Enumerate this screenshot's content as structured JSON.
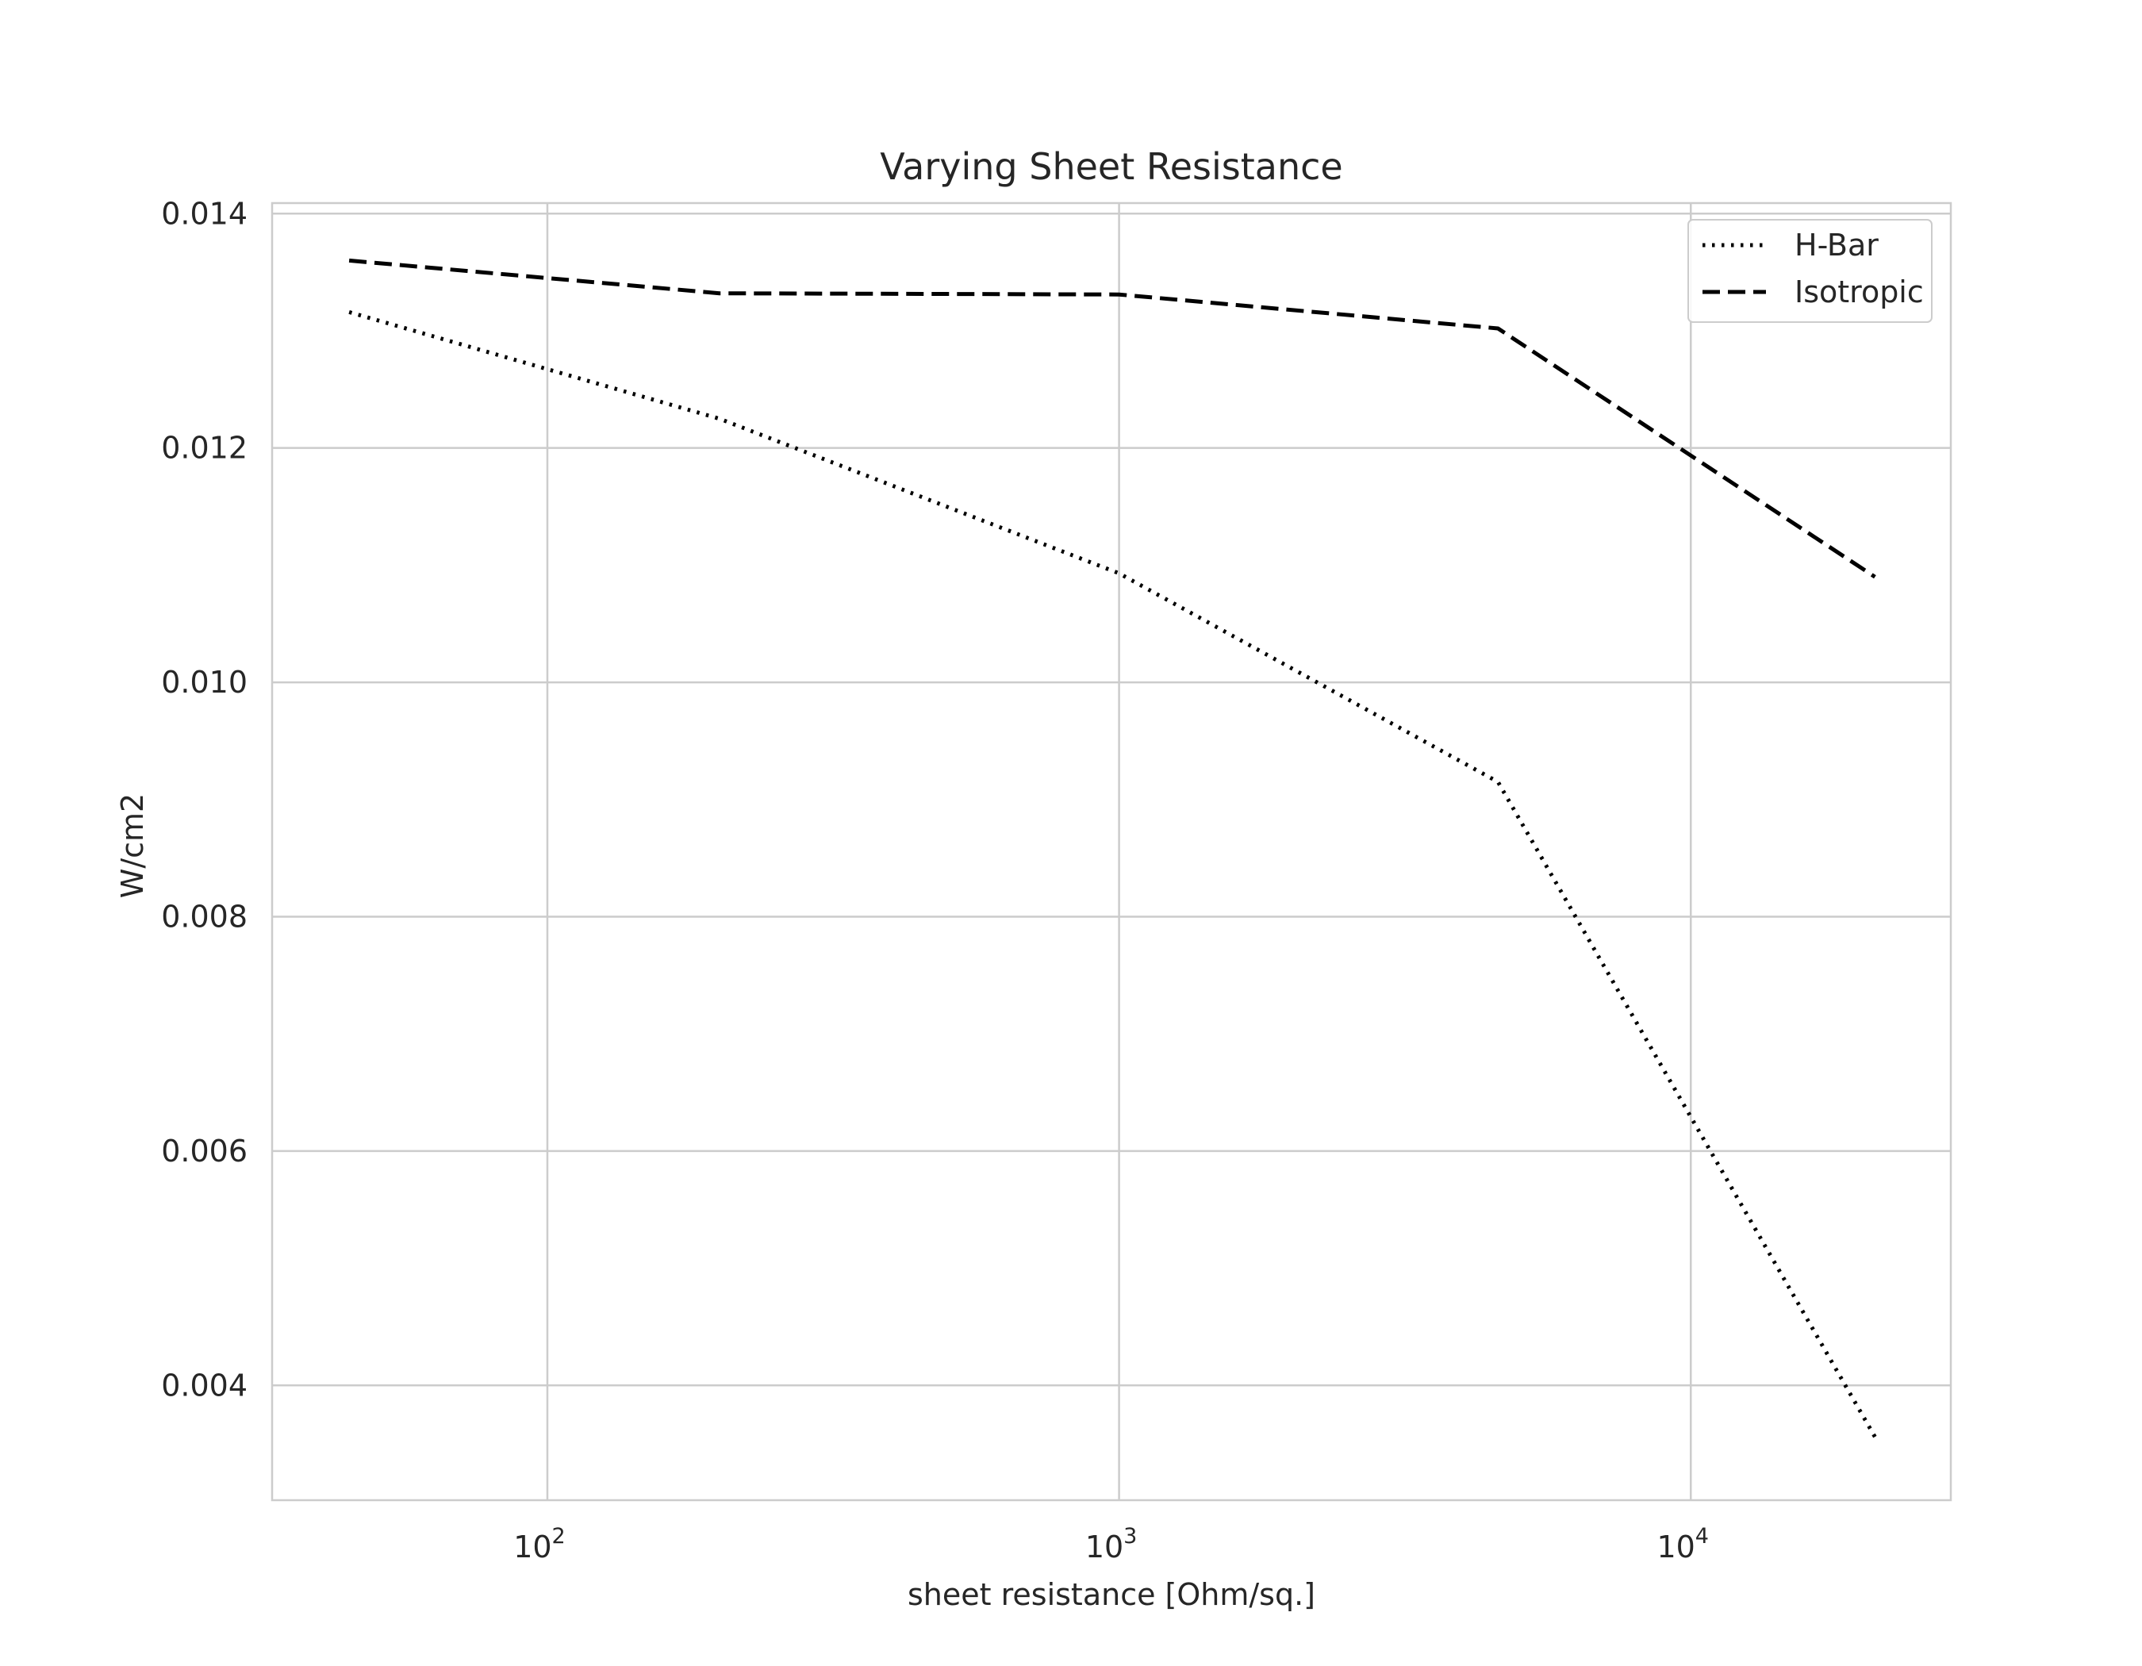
{
  "chart_data": {
    "type": "line",
    "title": "Varying Sheet Resistance",
    "xlabel": "sheet resistance [Ohm/sq.]",
    "ylabel": "W/cm2",
    "x_scale": "log",
    "xlim": [
      33,
      28500
    ],
    "ylim": [
      0.00302,
      0.01409
    ],
    "x": [
      45,
      200,
      1000,
      4600,
      21000
    ],
    "x_ticks": [
      {
        "value": 100,
        "base": "10",
        "exp": "2"
      },
      {
        "value": 1000,
        "base": "10",
        "exp": "3"
      },
      {
        "value": 10000,
        "base": "10",
        "exp": "4"
      }
    ],
    "y_ticks": [
      {
        "value": 0.004,
        "label": "0.004"
      },
      {
        "value": 0.006,
        "label": "0.006"
      },
      {
        "value": 0.008,
        "label": "0.008"
      },
      {
        "value": 0.01,
        "label": "0.010"
      },
      {
        "value": 0.012,
        "label": "0.012"
      },
      {
        "value": 0.014,
        "label": "0.014"
      }
    ],
    "series": [
      {
        "name": "H-Bar",
        "style": "dotted",
        "color": "#000000",
        "values": [
          0.01316,
          0.01225,
          0.01093,
          0.00915,
          0.00356
        ]
      },
      {
        "name": "Isotropic",
        "style": "dashed",
        "color": "#000000",
        "values": [
          0.0136,
          0.01332,
          0.01331,
          0.01302,
          0.0109
        ]
      }
    ],
    "grid": true,
    "legend_position": "top-right",
    "colors": {
      "grid": "#cccccc",
      "frame": "#cccccc",
      "text": "#262626"
    }
  }
}
